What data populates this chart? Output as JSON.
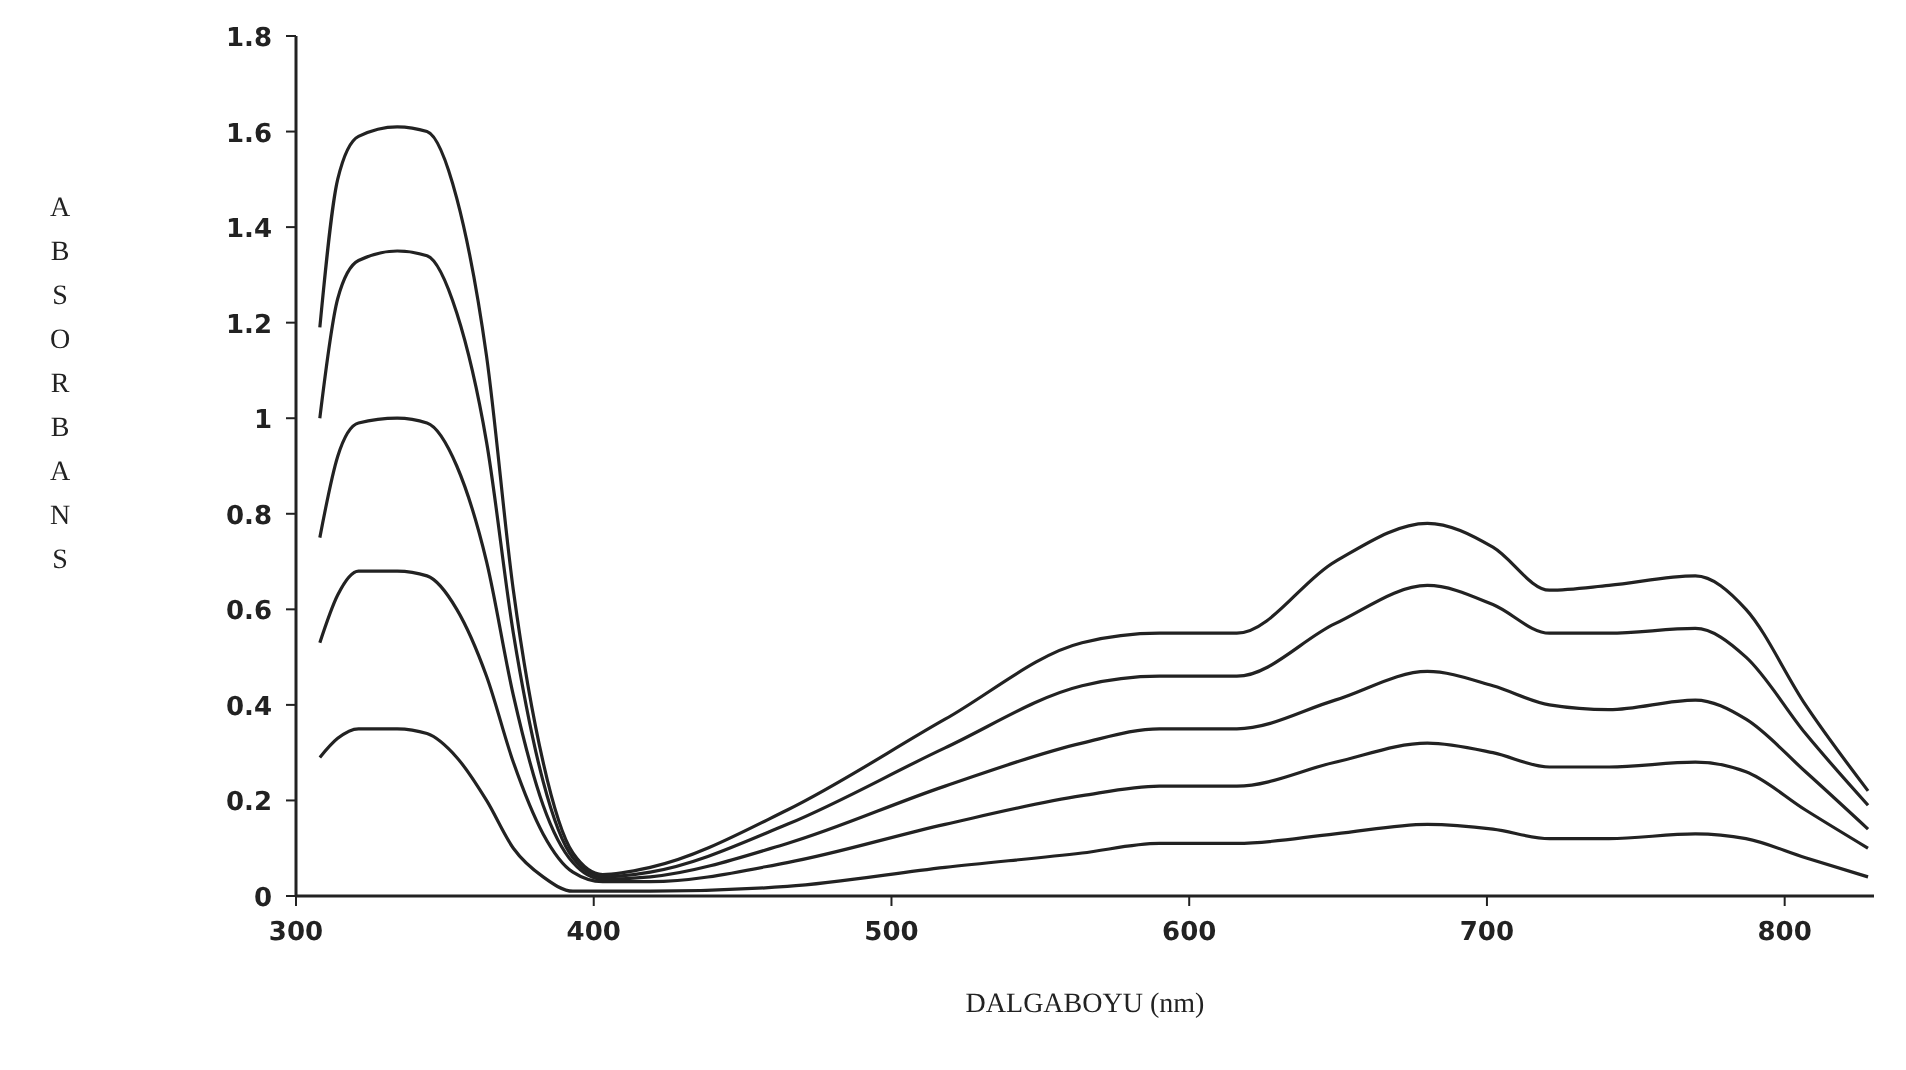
{
  "chart_data": {
    "type": "line",
    "xlabel": "DALGABOYU (nm)",
    "ylabel": "ABSORBANS",
    "x": [
      308,
      314,
      321,
      334,
      344,
      354,
      364,
      373,
      383,
      393,
      403,
      419,
      465,
      518,
      564,
      590,
      616,
      649,
      680,
      702,
      721,
      741,
      770,
      787,
      807,
      828
    ],
    "series": [
      {
        "color": "#222222",
        "values": [
          1.19,
          1.5,
          1.59,
          1.61,
          1.6,
          1.46,
          1.13,
          0.64,
          0.28,
          0.09,
          0.045,
          0.06,
          0.18,
          0.37,
          0.53,
          0.55,
          0.55,
          0.7,
          0.78,
          0.73,
          0.64,
          0.65,
          0.67,
          0.6,
          0.4,
          0.22
        ]
      },
      {
        "color": "#222222",
        "values": [
          1.0,
          1.25,
          1.33,
          1.35,
          1.34,
          1.22,
          0.95,
          0.55,
          0.24,
          0.08,
          0.04,
          0.05,
          0.15,
          0.31,
          0.44,
          0.46,
          0.46,
          0.57,
          0.65,
          0.61,
          0.55,
          0.55,
          0.56,
          0.5,
          0.34,
          0.19
        ]
      },
      {
        "color": "#222222",
        "values": [
          0.75,
          0.92,
          0.99,
          1.0,
          0.99,
          0.9,
          0.7,
          0.42,
          0.19,
          0.07,
          0.035,
          0.04,
          0.11,
          0.23,
          0.32,
          0.35,
          0.35,
          0.41,
          0.47,
          0.44,
          0.4,
          0.39,
          0.41,
          0.37,
          0.26,
          0.14
        ]
      },
      {
        "color": "#222222",
        "values": [
          0.53,
          0.63,
          0.68,
          0.68,
          0.67,
          0.6,
          0.46,
          0.28,
          0.13,
          0.05,
          0.03,
          0.03,
          0.07,
          0.15,
          0.21,
          0.23,
          0.23,
          0.28,
          0.32,
          0.3,
          0.27,
          0.27,
          0.28,
          0.26,
          0.18,
          0.1
        ]
      },
      {
        "color": "#222222",
        "values": [
          0.29,
          0.33,
          0.35,
          0.35,
          0.34,
          0.29,
          0.2,
          0.1,
          0.04,
          0.01,
          0.01,
          0.01,
          0.02,
          0.06,
          0.09,
          0.11,
          0.11,
          0.13,
          0.15,
          0.14,
          0.12,
          0.12,
          0.13,
          0.12,
          0.08,
          0.04
        ]
      }
    ],
    "xlim": [
      300,
      830
    ],
    "xticks": [
      300,
      400,
      500,
      600,
      700,
      800
    ],
    "ylim": [
      0,
      1.8
    ],
    "yticks": [
      0,
      0.2,
      0.4,
      0.6,
      0.8,
      1,
      1.2,
      1.4,
      1.6,
      1.8
    ],
    "grid": false,
    "marker": "none",
    "line_style": "solid"
  }
}
